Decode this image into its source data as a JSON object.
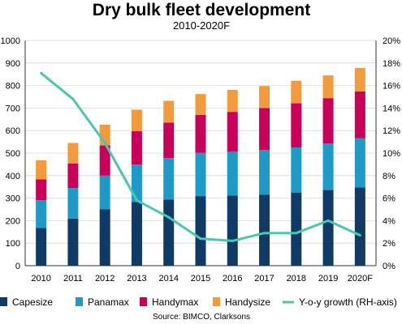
{
  "chart_data": {
    "type": "bar",
    "stacked": true,
    "title": "Dry bulk fleet development",
    "subtitle": "2010-2020F",
    "source": "Source: BIMCO, Clarksons",
    "categories": [
      "2010",
      "2011",
      "2012",
      "2013",
      "2014",
      "2015",
      "2016",
      "2017",
      "2018",
      "2019",
      "2020F"
    ],
    "ylim": [
      0,
      1000
    ],
    "y2lim": [
      0,
      20
    ],
    "yticks": [
      "0",
      "100",
      "200",
      "300",
      "400",
      "500",
      "600",
      "700",
      "800",
      "900",
      "1000"
    ],
    "y2ticks": [
      "0%",
      "2%",
      "4%",
      "6%",
      "8%",
      "10%",
      "12%",
      "14%",
      "16%",
      "18%",
      "20%"
    ],
    "grid": true,
    "legend_position": "bottom",
    "series": [
      {
        "name": "Capesize",
        "color": "#0d3b66",
        "values": [
          168,
          209,
          250,
          283,
          294,
          309,
          311,
          315,
          325,
          336,
          348
        ]
      },
      {
        "name": "Panamax",
        "color": "#1e9ac9",
        "values": [
          123,
          136,
          150,
          166,
          184,
          192,
          195,
          199,
          200,
          206,
          218
        ]
      },
      {
        "name": "Handymax",
        "color": "#c8005a",
        "values": [
          92,
          109,
          134,
          148,
          157,
          168,
          177,
          186,
          196,
          202,
          208
        ]
      },
      {
        "name": "Handysize",
        "color": "#f39a3c",
        "values": [
          85,
          91,
          92,
          96,
          97,
          93,
          98,
          98,
          100,
          101,
          104
        ]
      }
    ],
    "line_series": {
      "name": "Y-o-y growth (RH-axis)",
      "color": "#4cc6b0",
      "axis": "right",
      "values": [
        17.1,
        14.8,
        10.9,
        5.8,
        4.3,
        2.4,
        2.2,
        2.9,
        2.9,
        4.0,
        2.7
      ]
    }
  }
}
